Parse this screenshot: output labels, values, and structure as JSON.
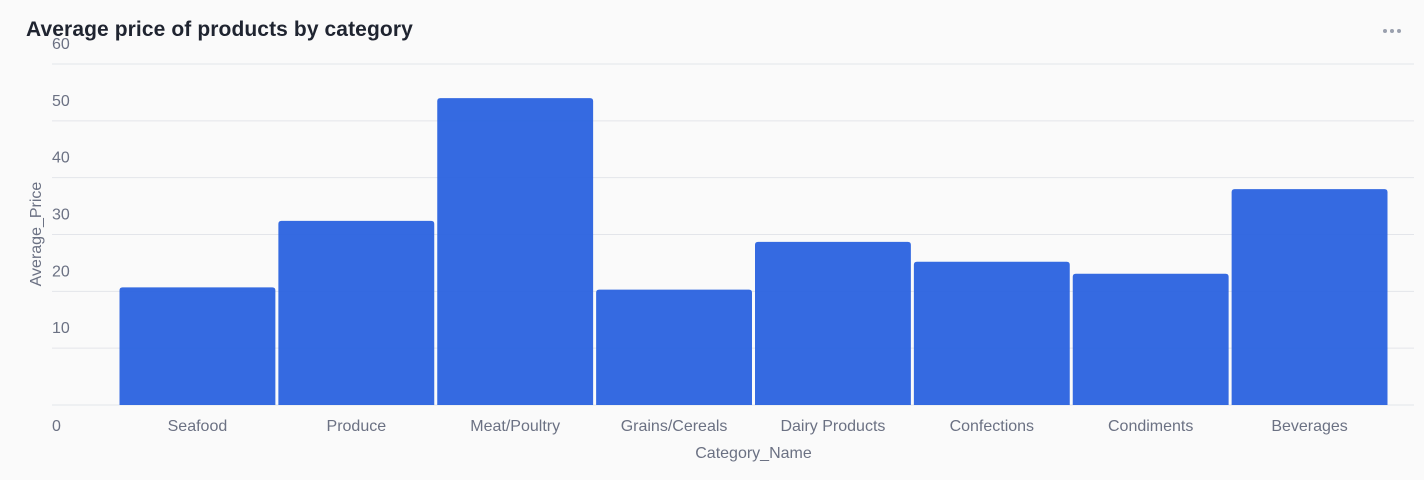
{
  "card": {
    "title": "Average price of products by category",
    "more_icon": "more-horizontal-icon"
  },
  "colors": {
    "bar": "#2a62df",
    "grid": "#e3e5ea",
    "text": "#6b7183",
    "background": "#fafafa"
  },
  "chart_data": {
    "type": "bar",
    "categories": [
      "Seafood",
      "Produce",
      "Meat/Poultry",
      "Grains/Cereals",
      "Dairy Products",
      "Confections",
      "Condiments",
      "Beverages"
    ],
    "values": [
      20.7,
      32.4,
      54.0,
      20.3,
      28.7,
      25.2,
      23.1,
      37.98
    ],
    "xlabel": "Category_Name",
    "ylabel": "Average_Price",
    "ylim": [
      0,
      60
    ],
    "yticks": [
      0,
      10,
      20,
      30,
      40,
      50,
      60
    ],
    "grid": true,
    "legend": "none"
  }
}
